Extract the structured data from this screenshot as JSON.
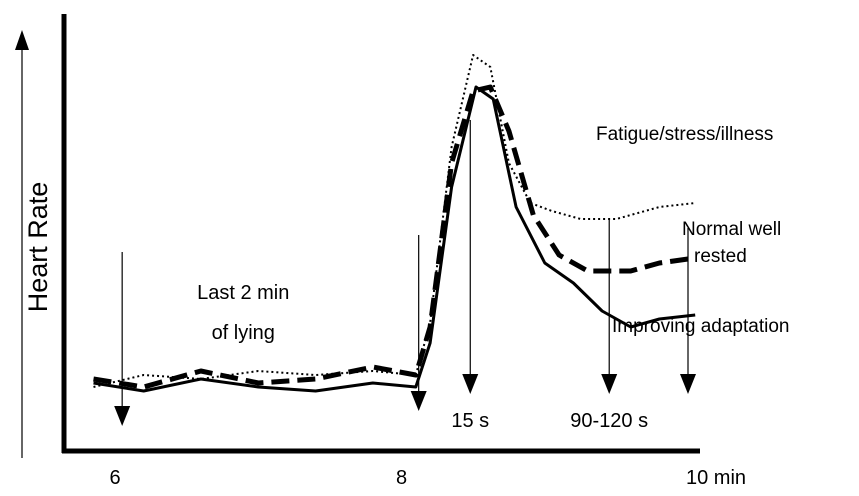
{
  "chart_data": {
    "type": "line",
    "title": "",
    "xlabel": "",
    "ylabel": "Heart Rate",
    "xlim": [
      6,
      10
    ],
    "ylim": [
      0,
      100
    ],
    "x_ticks": [
      {
        "value": 6,
        "label": "6"
      },
      {
        "value": 8,
        "label": "8"
      },
      {
        "value": 10,
        "label": "10 min"
      }
    ],
    "grid": false,
    "legend": "none",
    "series": [
      {
        "style": "dotted",
        "label": "Fatigue/stress/illness",
        "points": [
          [
            5.85,
            12
          ],
          [
            6.2,
            15
          ],
          [
            6.6,
            14
          ],
          [
            7.0,
            16
          ],
          [
            7.4,
            15
          ],
          [
            7.8,
            16
          ],
          [
            8.1,
            15
          ],
          [
            8.2,
            28
          ],
          [
            8.35,
            72
          ],
          [
            8.5,
            95
          ],
          [
            8.62,
            92
          ],
          [
            8.75,
            68
          ],
          [
            8.9,
            58
          ],
          [
            9.05,
            56
          ],
          [
            9.25,
            54
          ],
          [
            9.5,
            54
          ],
          [
            9.8,
            57
          ],
          [
            10.05,
            58
          ]
        ]
      },
      {
        "style": "dashed",
        "label": "Normal well rested",
        "points": [
          [
            5.85,
            14
          ],
          [
            6.2,
            12
          ],
          [
            6.6,
            16
          ],
          [
            7.0,
            13
          ],
          [
            7.4,
            14
          ],
          [
            7.8,
            17
          ],
          [
            8.1,
            15
          ],
          [
            8.2,
            27
          ],
          [
            8.35,
            68
          ],
          [
            8.5,
            86
          ],
          [
            8.62,
            87
          ],
          [
            8.75,
            76
          ],
          [
            8.92,
            55
          ],
          [
            9.1,
            45
          ],
          [
            9.3,
            41
          ],
          [
            9.6,
            41
          ],
          [
            9.8,
            43
          ],
          [
            10.0,
            44
          ]
        ]
      },
      {
        "style": "solid",
        "label": "Improving adaptation",
        "points": [
          [
            5.85,
            13
          ],
          [
            6.2,
            11
          ],
          [
            6.6,
            14
          ],
          [
            7.0,
            12
          ],
          [
            7.4,
            11
          ],
          [
            7.8,
            13
          ],
          [
            8.1,
            12
          ],
          [
            8.2,
            23
          ],
          [
            8.35,
            62
          ],
          [
            8.52,
            87
          ],
          [
            8.64,
            84
          ],
          [
            8.8,
            57
          ],
          [
            9.0,
            43
          ],
          [
            9.2,
            38
          ],
          [
            9.4,
            31
          ],
          [
            9.6,
            27
          ],
          [
            9.8,
            29
          ],
          [
            10.05,
            30
          ]
        ]
      }
    ],
    "markers": [
      {
        "x": 6.05,
        "label": ""
      },
      {
        "x": 8.12,
        "label": ""
      },
      {
        "x": 8.48,
        "label": "15 s"
      },
      {
        "x": 9.45,
        "label": "90-120 s"
      },
      {
        "x": 10.0,
        "label": ""
      }
    ],
    "annotations": [
      {
        "text": "Last 2 min",
        "x": 7.0,
        "y": 34
      },
      {
        "text": "of lying",
        "x": 7.0,
        "y": 24
      }
    ]
  }
}
